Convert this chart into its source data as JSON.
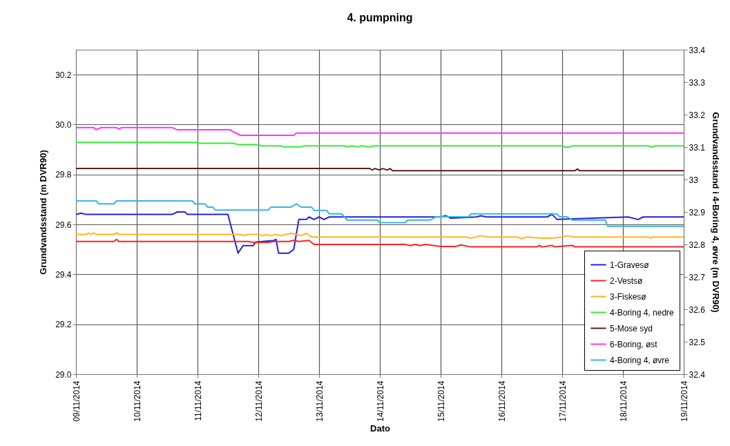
{
  "chart_data": {
    "type": "line",
    "title": "4. pumpning",
    "xlabel": "Dato",
    "ylabel": "Grundvandsstand  (m DVR90)",
    "y2label": "Grundvandsstand i 4-Boring 4, øvre (m DVR90)",
    "xlim": [
      "2014-11-09",
      "2014-11-19"
    ],
    "xticks": [
      {
        "value": "2014-11-09",
        "label": "09/11/2014"
      },
      {
        "value": "2014-11-10",
        "label": "10/11/2014"
      },
      {
        "value": "2014-11-11",
        "label": "11/11/2014"
      },
      {
        "value": "2014-11-12",
        "label": "12/11/2014"
      },
      {
        "value": "2014-11-13",
        "label": "13/11/2014"
      },
      {
        "value": "2014-11-14",
        "label": "14/11/2014"
      },
      {
        "value": "2014-11-15",
        "label": "15/11/2014"
      },
      {
        "value": "2014-11-16",
        "label": "16/11/2014"
      },
      {
        "value": "2014-11-17",
        "label": "17/11/2014"
      },
      {
        "value": "2014-11-18",
        "label": "18/11/2014"
      },
      {
        "value": "2014-11-19",
        "label": "19/11/2014"
      }
    ],
    "ylim": [
      29.0,
      30.3
    ],
    "yticks": [
      {
        "value": 29,
        "label": "29.0"
      },
      29.2,
      29.4,
      29.6,
      29.8,
      {
        "value": 30,
        "label": "30.0"
      },
      30.2
    ],
    "y2lim": [
      32.4,
      33.4
    ],
    "y2ticks": [
      32.4,
      32.5,
      32.6,
      32.7,
      32.8,
      32.9,
      33,
      33.1,
      33.2,
      33.3,
      33.4
    ],
    "grid": true,
    "legend": "bottom right",
    "series": [
      {
        "name": "1-Gravesø",
        "color": "#2222dd",
        "x": [
          "2014-11-09T00:00",
          "2014-11-09T02:00",
          "2014-11-09T04:00",
          "2014-11-10T14:00",
          "2014-11-10T16:00",
          "2014-11-10T19:00",
          "2014-11-10T20:00",
          "2014-11-11T12:00",
          "2014-11-11T16:00",
          "2014-11-11T18:00",
          "2014-11-11T22:00",
          "2014-11-11T23:00",
          "2014-11-12T06:00",
          "2014-11-12T07:00",
          "2014-11-12T08:00",
          "2014-11-12T12:00",
          "2014-11-12T14:00",
          "2014-11-12T16:00",
          "2014-11-12T19:00",
          "2014-11-12T20:00",
          "2014-11-12T22:00",
          "2014-11-13T00:00",
          "2014-11-13T02:00",
          "2014-11-13T04:00",
          "2014-11-13T05:00",
          "2014-11-15T00:00",
          "2014-11-15T02:00",
          "2014-11-15T04:00",
          "2014-11-15T14:00",
          "2014-11-15T16:00",
          "2014-11-15T18:00",
          "2014-11-16T18:00",
          "2014-11-16T20:00",
          "2014-11-16T22:00",
          "2014-11-18T02:00",
          "2014-11-18T06:00",
          "2014-11-18T08:00",
          "2014-11-19T00:00"
        ],
        "values": [
          29.64,
          29.645,
          29.64,
          29.64,
          29.65,
          29.65,
          29.64,
          29.64,
          29.485,
          29.515,
          29.515,
          29.53,
          29.535,
          29.54,
          29.485,
          29.485,
          29.5,
          29.62,
          29.62,
          29.63,
          29.62,
          29.63,
          29.62,
          29.63,
          29.63,
          29.63,
          29.635,
          29.625,
          29.63,
          29.635,
          29.63,
          29.63,
          29.64,
          29.62,
          29.63,
          29.62,
          29.63,
          29.63
        ]
      },
      {
        "name": "2-Vestsø",
        "color": "#ff2020",
        "x": [
          "2014-11-09T00:00",
          "2014-11-09T15:00",
          "2014-11-09T16:00",
          "2014-11-09T17:00",
          "2014-11-11T20:00",
          "2014-11-11T22:00",
          "2014-11-12T04:00",
          "2014-11-12T06:00",
          "2014-11-12T12:00",
          "2014-11-12T14:00",
          "2014-11-12T16:00",
          "2014-11-12T20:00",
          "2014-11-12T22:00",
          "2014-11-14T10:00",
          "2014-11-14T12:00",
          "2014-11-14T14:00",
          "2014-11-14T16:00",
          "2014-11-14T18:00",
          "2014-11-15T00:00",
          "2014-11-15T06:00",
          "2014-11-15T08:00",
          "2014-11-15T12:00",
          "2014-11-16T14:00",
          "2014-11-16T15:00",
          "2014-11-16T16:00",
          "2014-11-16T20:00",
          "2014-11-16T21:00",
          "2014-11-17T04:00",
          "2014-11-17T05:00",
          "2014-11-19T00:00"
        ],
        "values": [
          29.532,
          29.532,
          29.54,
          29.532,
          29.532,
          29.528,
          29.528,
          29.532,
          29.532,
          29.536,
          29.532,
          29.536,
          29.52,
          29.52,
          29.515,
          29.52,
          29.515,
          29.52,
          29.512,
          29.512,
          29.518,
          29.51,
          29.51,
          29.516,
          29.51,
          29.516,
          29.51,
          29.516,
          29.51,
          29.51
        ]
      },
      {
        "name": "3-Fiskesø",
        "color": "#ffb520",
        "x": [
          "2014-11-09T00:00",
          "2014-11-09T04:00",
          "2014-11-09T05:00",
          "2014-11-09T06:00",
          "2014-11-09T07:00",
          "2014-11-09T08:00",
          "2014-11-09T15:00",
          "2014-11-09T16:00",
          "2014-11-09T17:00",
          "2014-11-11T17:00",
          "2014-11-11T18:00",
          "2014-11-11T20:00",
          "2014-11-12T00:00",
          "2014-11-12T02:00",
          "2014-11-12T03:00",
          "2014-11-12T05:00",
          "2014-11-12T07:00",
          "2014-11-12T09:00",
          "2014-11-12T11:00",
          "2014-11-12T13:00",
          "2014-11-12T15:00",
          "2014-11-12T17:00",
          "2014-11-12T19:00",
          "2014-11-12T21:00",
          "2014-11-15T10:00",
          "2014-11-15T12:00",
          "2014-11-15T14:00",
          "2014-11-15T16:00",
          "2014-11-15T18:00",
          "2014-11-16T06:00",
          "2014-11-16T08:00",
          "2014-11-16T10:00",
          "2014-11-16T16:00",
          "2014-11-16T20:00",
          "2014-11-17T00:00",
          "2014-11-17T02:00",
          "2014-11-17T04:00",
          "2014-11-18T10:00",
          "2014-11-18T11:00",
          "2014-11-18T12:00",
          "2014-11-19T00:00"
        ],
        "values": [
          29.56,
          29.56,
          29.566,
          29.56,
          29.566,
          29.56,
          29.56,
          29.566,
          29.56,
          29.56,
          29.555,
          29.56,
          29.56,
          29.555,
          29.56,
          29.555,
          29.56,
          29.555,
          29.56,
          29.565,
          29.56,
          29.555,
          29.565,
          29.55,
          29.55,
          29.545,
          29.55,
          29.555,
          29.55,
          29.55,
          29.543,
          29.55,
          29.545,
          29.545,
          29.55,
          29.555,
          29.55,
          29.55,
          29.545,
          29.55,
          29.55
        ]
      },
      {
        "name": "4-Boring 4, nedre",
        "color": "#33ee33",
        "x": [
          "2014-11-09T00:00",
          "2014-11-11T00:00",
          "2014-11-11T01:00",
          "2014-11-11T14:00",
          "2014-11-11T16:00",
          "2014-11-12T00:00",
          "2014-11-12T01:00",
          "2014-11-12T09:00",
          "2014-11-12T10:00",
          "2014-11-12T17:00",
          "2014-11-12T18:00",
          "2014-11-13T10:00",
          "2014-11-13T11:00",
          "2014-11-13T13:00",
          "2014-11-13T15:00",
          "2014-11-13T17:00",
          "2014-11-13T20:00",
          "2014-11-13T22:00",
          "2014-11-17T00:00",
          "2014-11-17T01:00",
          "2014-11-17T03:00",
          "2014-11-17T04:00",
          "2014-11-18T10:00",
          "2014-11-18T11:00",
          "2014-11-18T13:00",
          "2014-11-19T00:00"
        ],
        "values": [
          29.929,
          29.929,
          29.925,
          29.925,
          29.92,
          29.92,
          29.915,
          29.915,
          29.911,
          29.911,
          29.915,
          29.915,
          29.911,
          29.915,
          29.911,
          29.915,
          29.911,
          29.915,
          29.915,
          29.91,
          29.91,
          29.915,
          29.915,
          29.91,
          29.915,
          29.915
        ]
      },
      {
        "name": "5-Mose syd",
        "color": "#5a1e1e",
        "x": [
          "2014-11-09T00:00",
          "2014-11-13T20:00",
          "2014-11-13T21:00",
          "2014-11-13T22:00",
          "2014-11-14T00:00",
          "2014-11-14T01:00",
          "2014-11-14T03:00",
          "2014-11-14T04:00",
          "2014-11-14T05:00",
          "2014-11-17T05:00",
          "2014-11-17T06:00",
          "2014-11-17T07:00",
          "2014-11-19T00:00"
        ],
        "values": [
          29.824,
          29.824,
          29.818,
          29.824,
          29.818,
          29.824,
          29.818,
          29.824,
          29.815,
          29.815,
          29.822,
          29.815,
          29.815
        ]
      },
      {
        "name": "6-Boring, øst",
        "color": "#ff33ff",
        "x": [
          "2014-11-09T00:00",
          "2014-11-09T07:00",
          "2014-11-09T08:00",
          "2014-11-09T10:00",
          "2014-11-09T16:00",
          "2014-11-09T17:00",
          "2014-11-09T18:00",
          "2014-11-10T14:00",
          "2014-11-10T16:00",
          "2014-11-11T13:00",
          "2014-11-11T14:00",
          "2014-11-11T17:00",
          "2014-11-12T14:00",
          "2014-11-12T15:00",
          "2014-11-19T00:00"
        ],
        "values": [
          29.988,
          29.988,
          29.98,
          29.988,
          29.988,
          29.982,
          29.988,
          29.988,
          29.979,
          29.979,
          29.972,
          29.957,
          29.957,
          29.966,
          29.966
        ]
      },
      {
        "name": "4-Boring 4, øvre",
        "color": "#33b5e8",
        "axis": "y2",
        "x": [
          "2014-11-09T00:00",
          "2014-11-09T08:00",
          "2014-11-09T09:00",
          "2014-11-09T15:00",
          "2014-11-09T16:00",
          "2014-11-10T22:00",
          "2014-11-10T23:00",
          "2014-11-11T03:00",
          "2014-11-11T04:00",
          "2014-11-11T06:00",
          "2014-11-11T07:00",
          "2014-11-12T04:00",
          "2014-11-12T05:00",
          "2014-11-12T13:00",
          "2014-11-12T15:00",
          "2014-11-12T17:00",
          "2014-11-12T21:00",
          "2014-11-12T22:00",
          "2014-11-13T03:00",
          "2014-11-13T04:00",
          "2014-11-13T09:00",
          "2014-11-13T11:00",
          "2014-11-13T23:00",
          "2014-11-14T00:00",
          "2014-11-14T10:00",
          "2014-11-14T11:00",
          "2014-11-14T20:00",
          "2014-11-14T22:00",
          "2014-11-15T11:00",
          "2014-11-15T12:00",
          "2014-11-16T22:00",
          "2014-11-16T23:00",
          "2014-11-17T02:00",
          "2014-11-17T04:00",
          "2014-11-17T17:00",
          "2014-11-17T18:00",
          "2014-11-19T00:00"
        ],
        "values": [
          32.934,
          32.934,
          32.925,
          32.925,
          32.934,
          32.934,
          32.925,
          32.925,
          32.915,
          32.915,
          32.906,
          32.906,
          32.915,
          32.915,
          32.925,
          32.915,
          32.915,
          32.905,
          32.905,
          32.894,
          32.894,
          32.875,
          32.875,
          32.867,
          32.867,
          32.875,
          32.875,
          32.885,
          32.885,
          32.894,
          32.894,
          32.885,
          32.885,
          32.875,
          32.875,
          32.856,
          32.856
        ]
      }
    ]
  }
}
